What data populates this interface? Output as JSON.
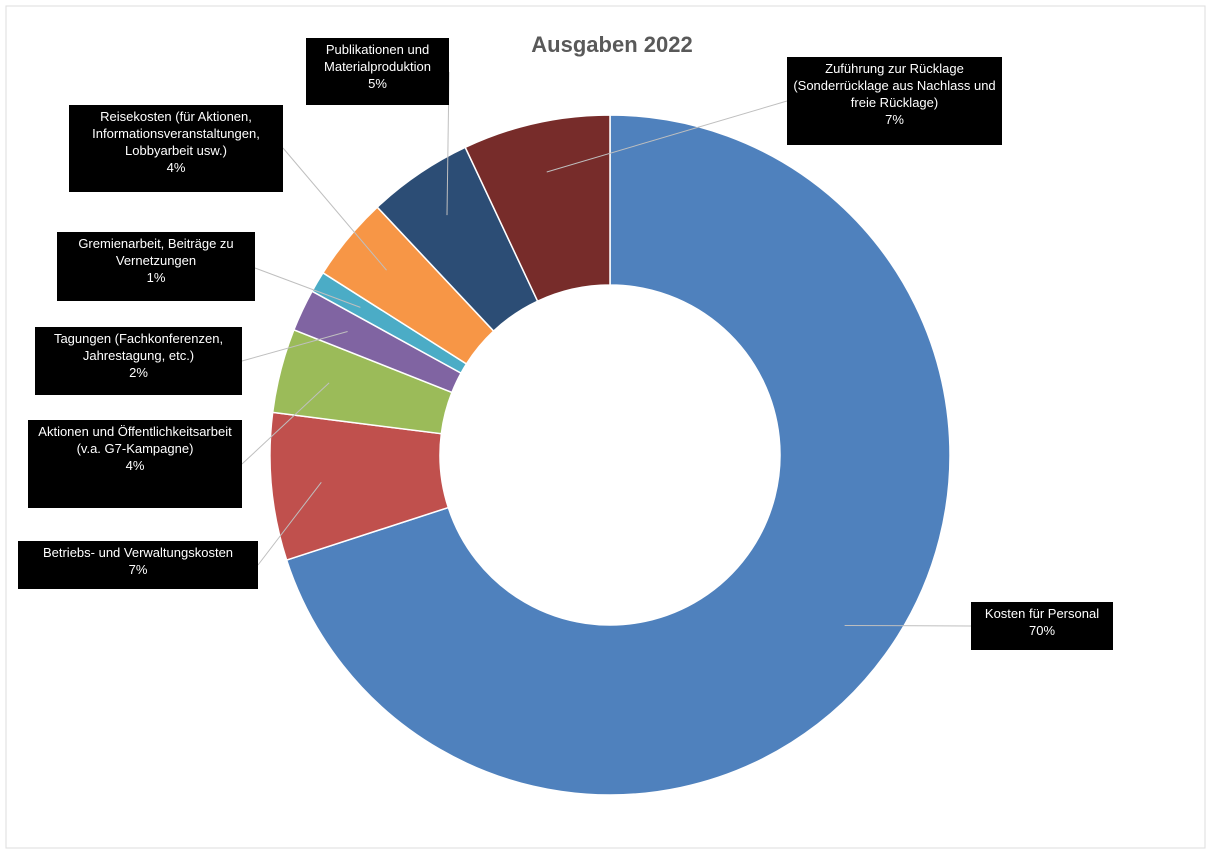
{
  "chart_data": {
    "type": "donut",
    "title": "Ausgaben 2022",
    "categories": [
      "Kosten für Personal",
      "Betriebs- und Verwaltungskosten",
      "Aktionen und Öffentlichkeitsarbeit (v.a. G7-Kampagne)",
      "Tagungen (Fachkonferenzen, Jahrestagung, etc.)",
      "Gremienarbeit, Beiträge zu Vernetzungen",
      "Reisekosten (für Aktionen, Informationsveranstaltungen, Lobbyarbeit usw.)",
      "Publikationen und Materialproduktion",
      "Zuführung zur Rücklage (Sonderrücklage aus Nachlass und freie Rücklage)"
    ],
    "values": [
      70,
      7,
      4,
      2,
      1,
      4,
      5,
      7
    ],
    "value_labels": [
      "70%",
      "7%",
      "4%",
      "2%",
      "1%",
      "4%",
      "5%",
      "7%"
    ],
    "colors": [
      "#4f81bd",
      "#c0504d",
      "#9bbb59",
      "#8064a2",
      "#4bacc6",
      "#f79646",
      "#2c4d75",
      "#772c2a"
    ]
  }
}
